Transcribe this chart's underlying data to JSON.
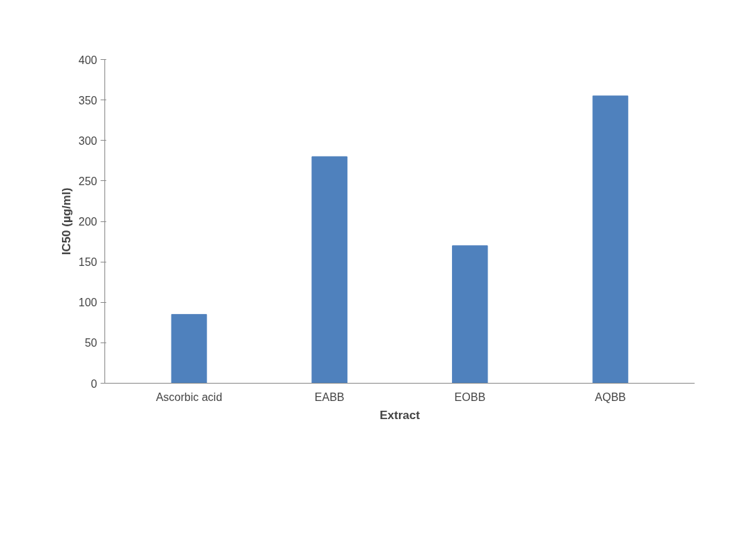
{
  "chart_data": {
    "type": "bar",
    "xlabel": "Extract",
    "ylabel": "IC50 (µg/ml)",
    "categories": [
      "Ascorbic acid",
      "EABB",
      "EOBB",
      "AQBB"
    ],
    "values": [
      85,
      280,
      170,
      355
    ],
    "color": "#4f81bd",
    "ylim": [
      0,
      400
    ],
    "yticks": [
      0,
      50,
      100,
      150,
      200,
      250,
      300,
      350,
      400
    ],
    "grid": false
  }
}
